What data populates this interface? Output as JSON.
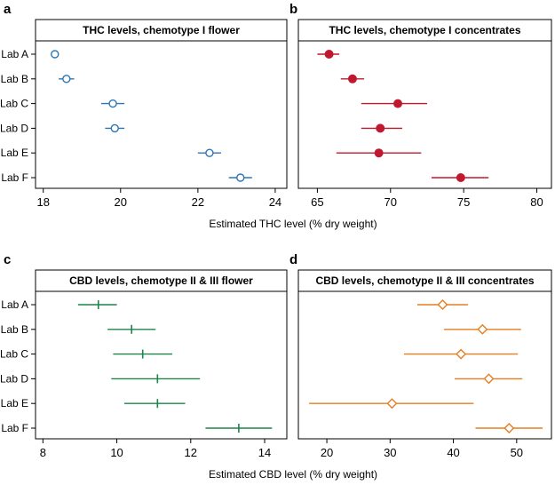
{
  "chart_data": [
    {
      "panel": "a",
      "type": "scatter",
      "title": "THC levels, chemotype I flower",
      "categories": [
        "Lab A",
        "Lab B",
        "Lab C",
        "Lab D",
        "Lab E",
        "Lab F"
      ],
      "values": [
        18.3,
        18.6,
        19.8,
        19.85,
        22.3,
        23.1
      ],
      "lower": [
        18.2,
        18.4,
        19.5,
        19.6,
        22.0,
        22.8
      ],
      "upper": [
        18.4,
        18.8,
        20.1,
        20.1,
        22.6,
        23.4
      ],
      "marker": "open-circle",
      "color": "#2e75b6",
      "xlim": [
        17.8,
        24.3
      ],
      "xticks": [
        18,
        20,
        22,
        24
      ],
      "xlabel": "Estimated THC level (% dry weight)"
    },
    {
      "panel": "b",
      "type": "scatter",
      "title": "THC levels, chemotype I concentrates",
      "categories": [
        "Lab A",
        "Lab B",
        "Lab C",
        "Lab D",
        "Lab E",
        "Lab F"
      ],
      "values": [
        65.8,
        67.4,
        70.5,
        69.3,
        69.2,
        74.8
      ],
      "lower": [
        65.0,
        66.6,
        68.0,
        68.0,
        66.3,
        72.8
      ],
      "upper": [
        66.5,
        68.2,
        72.5,
        70.8,
        72.1,
        76.7
      ],
      "marker": "filled-circle",
      "color": "#c0182f",
      "xlim": [
        63.7,
        81.0
      ],
      "xticks": [
        65,
        70,
        75,
        80
      ],
      "xlabel": "Estimated THC level (% dry weight)"
    },
    {
      "panel": "c",
      "type": "scatter",
      "title": "CBD levels, chemotype II & III flower",
      "categories": [
        "Lab A",
        "Lab B",
        "Lab C",
        "Lab D",
        "Lab E",
        "Lab F"
      ],
      "values": [
        9.5,
        10.4,
        10.7,
        11.1,
        11.1,
        13.3
      ],
      "lower": [
        8.95,
        9.75,
        9.9,
        9.85,
        10.2,
        12.4
      ],
      "upper": [
        10.0,
        11.05,
        11.5,
        12.25,
        11.85,
        14.2
      ],
      "marker": "vertical-tick",
      "color": "#1e8449",
      "xlim": [
        7.8,
        14.6
      ],
      "xticks": [
        8,
        10,
        12,
        14
      ],
      "xlabel": "Estimated CBD level (% dry weight)"
    },
    {
      "panel": "d",
      "type": "scatter",
      "title": "CBD levels, chemotype II & III concentrates",
      "categories": [
        "Lab A",
        "Lab B",
        "Lab C",
        "Lab D",
        "Lab E",
        "Lab F"
      ],
      "values": [
        38.3,
        44.6,
        41.2,
        45.6,
        30.3,
        48.8
      ],
      "lower": [
        34.3,
        38.5,
        32.2,
        40.2,
        17.2,
        43.5
      ],
      "upper": [
        42.3,
        50.7,
        50.2,
        50.9,
        43.2,
        54.1
      ],
      "marker": "open-diamond",
      "color": "#e67e22",
      "xlim": [
        15.5,
        55.5
      ],
      "xticks": [
        20,
        30,
        40,
        50
      ],
      "xlabel": "Estimated CBD level (% dry weight)"
    }
  ]
}
